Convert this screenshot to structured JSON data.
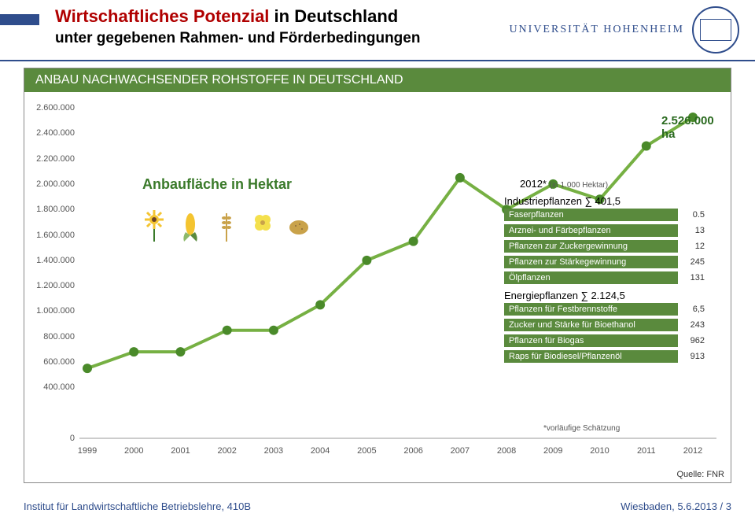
{
  "header": {
    "title_red": "Wirtschaftliches Potenzial",
    "title_black": " in Deutschland",
    "subtitle": "unter gegebenen Rahmen- und Förderbedingungen",
    "university": "UNIVERSITÄT HOHENHEIM"
  },
  "chart": {
    "title": "ANBAU NACHWACHSENDER ROHSTOFFE IN DEUTSCHLAND",
    "sub_label": "Anbaufläche in Hektar",
    "endpoint_label": "2.526.000 ha",
    "year_label": "2012*",
    "year_label_note": "(in 1.000 Hektar)",
    "footnote": "*vorläufige Schätzung",
    "source": "Quelle: FNR",
    "type": "line",
    "background_color": "#ffffff",
    "title_bg": "#5a8a3d",
    "line_color": "#76b043",
    "marker_color": "#4a8a2a",
    "line_width": 4,
    "marker_radius": 6,
    "y_axis": {
      "min": 0,
      "max": 2600000,
      "ticks": [
        0,
        400000,
        600000,
        800000,
        1000000,
        1200000,
        1400000,
        1600000,
        1800000,
        2000000,
        2200000,
        2400000,
        2600000
      ],
      "tick_labels": [
        "0",
        "400.000",
        "600.000",
        "800.000",
        "1.000.000",
        "1.200.000",
        "1.400.000",
        "1.600.000",
        "1.800.000",
        "2.000.000",
        "2.200.000",
        "2.400.000",
        "2.600.000"
      ]
    },
    "x_axis": {
      "years": [
        1999,
        2000,
        2001,
        2002,
        2003,
        2004,
        2005,
        2006,
        2007,
        2008,
        2009,
        2010,
        2011,
        2012
      ]
    },
    "series": [
      {
        "year": 1999,
        "value": 550000
      },
      {
        "year": 2000,
        "value": 680000
      },
      {
        "year": 2001,
        "value": 680000
      },
      {
        "year": 2002,
        "value": 850000
      },
      {
        "year": 2003,
        "value": 850000
      },
      {
        "year": 2004,
        "value": 1050000
      },
      {
        "year": 2005,
        "value": 1400000
      },
      {
        "year": 2006,
        "value": 1550000
      },
      {
        "year": 2007,
        "value": 2050000
      },
      {
        "year": 2008,
        "value": 1800000
      },
      {
        "year": 2009,
        "value": 2000000
      },
      {
        "year": 2010,
        "value": 1880000
      },
      {
        "year": 2011,
        "value": 2300000
      },
      {
        "year": 2012,
        "value": 2526000
      }
    ],
    "legend": {
      "industrie_head": "Industriepflanzen ∑ 401,5",
      "industrie_rows": [
        {
          "label": "Faserpflanzen",
          "value": "0.5"
        },
        {
          "label": "Arznei- und Färbepflanzen",
          "value": "13"
        },
        {
          "label": "Pflanzen zur Zuckergewinnung",
          "value": "12"
        },
        {
          "label": "Pflanzen zur Stärkegewinnung",
          "value": "245"
        },
        {
          "label": "Ölpflanzen",
          "value": "131"
        }
      ],
      "energie_head": "Energiepflanzen ∑ 2.124,5",
      "energie_rows": [
        {
          "label": "Pflanzen für Festbrennstoffe",
          "value": "6,5"
        },
        {
          "label": "Zucker und Stärke für Bioethanol",
          "value": "243"
        },
        {
          "label": "Pflanzen für Biogas",
          "value": "962"
        },
        {
          "label": "Raps für Biodiesel/Pflanzenöl",
          "value": "913"
        }
      ]
    }
  },
  "footer": {
    "left": "Institut für Landwirtschaftliche Betriebslehre, 410B",
    "right": "Wiesbaden, 5.6.2013 / 3"
  }
}
